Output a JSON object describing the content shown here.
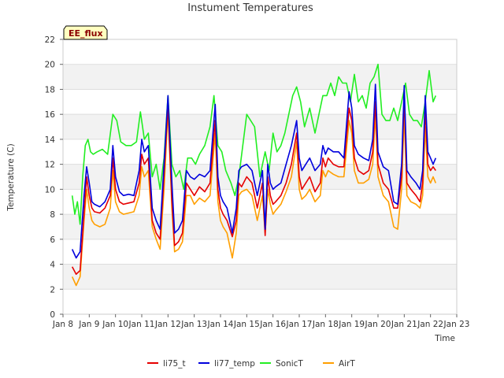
{
  "chart_data": {
    "type": "line",
    "title": "Instument Temperatures",
    "xlabel": "Time",
    "ylabel": "Temperature (C)",
    "badge": "EE_flux",
    "ylim": [
      0,
      22
    ],
    "xlim": [
      8,
      23
    ],
    "yticks": [
      "0",
      "2",
      "4",
      "6",
      "8",
      "10",
      "12",
      "14",
      "16",
      "18",
      "20",
      "22"
    ],
    "ytick_values": [
      0,
      2,
      4,
      6,
      8,
      10,
      12,
      14,
      16,
      18,
      20,
      22
    ],
    "xticks": [
      "Jan 8",
      "Jan 9",
      "Jan 10",
      "Jan 11",
      "Jan 12",
      "Jan 13",
      "Jan 14",
      "Jan 15",
      "Jan 16",
      "Jan 17",
      "Jan 18",
      "Jan 19",
      "Jan 20",
      "Jan 21",
      "Jan 22",
      "Jan 23"
    ],
    "xtick_values": [
      8,
      9,
      10,
      11,
      12,
      13,
      14,
      15,
      16,
      17,
      18,
      19,
      20,
      21,
      22,
      23
    ],
    "background_bands": "alternating grey/white every 2 units",
    "legend_position": "bottom-center",
    "series": [
      {
        "name": "li75_t",
        "color": "#e60000",
        "x": [
          8.35,
          8.5,
          8.65,
          8.8,
          8.9,
          9.0,
          9.1,
          9.2,
          9.4,
          9.6,
          9.8,
          9.9,
          10.0,
          10.15,
          10.3,
          10.5,
          10.7,
          10.9,
          11.0,
          11.1,
          11.25,
          11.4,
          11.55,
          11.7,
          11.85,
          12.0,
          12.15,
          12.25,
          12.4,
          12.55,
          12.7,
          12.85,
          13.0,
          13.2,
          13.4,
          13.6,
          13.8,
          13.9,
          14.0,
          14.1,
          14.25,
          14.45,
          14.6,
          14.7,
          14.8,
          15.0,
          15.2,
          15.4,
          15.6,
          15.7,
          15.8,
          15.9,
          16.0,
          16.1,
          16.3,
          16.5,
          16.7,
          16.9,
          17.0,
          17.1,
          17.25,
          17.4,
          17.6,
          17.8,
          17.9,
          18.0,
          18.1,
          18.3,
          18.5,
          18.7,
          18.9,
          19.0,
          19.1,
          19.25,
          19.45,
          19.65,
          19.8,
          19.9,
          20.0,
          20.2,
          20.4,
          20.6,
          20.75,
          20.9,
          21.0,
          21.1,
          21.25,
          21.45,
          21.6,
          21.7,
          21.8,
          21.9,
          22.0,
          22.1,
          22.2
        ],
        "y": [
          3.8,
          3.2,
          3.5,
          8.0,
          11.0,
          9.5,
          8.5,
          8.2,
          8.1,
          8.5,
          9.5,
          12.5,
          10.0,
          9.0,
          8.8,
          8.9,
          9.0,
          10.5,
          12.8,
          12.0,
          12.5,
          7.5,
          6.5,
          6.0,
          11.0,
          16.8,
          9.0,
          5.5,
          5.8,
          6.5,
          10.5,
          10.0,
          9.5,
          10.2,
          9.8,
          10.5,
          15.5,
          10.0,
          8.5,
          8.0,
          7.5,
          6.2,
          7.5,
          10.5,
          10.2,
          11.0,
          10.5,
          8.5,
          10.5,
          6.3,
          11.0,
          9.5,
          8.8,
          9.0,
          9.5,
          10.5,
          12.0,
          14.5,
          11.0,
          10.0,
          10.5,
          11.0,
          9.8,
          10.5,
          12.5,
          11.8,
          12.5,
          12.0,
          11.8,
          11.8,
          16.5,
          15.5,
          12.5,
          11.5,
          11.2,
          11.5,
          13.0,
          17.0,
          12.0,
          10.5,
          10.0,
          8.5,
          8.5,
          11.0,
          17.5,
          10.5,
          10.0,
          9.5,
          9.0,
          10.5,
          16.5,
          12.0,
          11.5,
          11.8,
          11.5
        ]
      },
      {
        "name": "li77_temp",
        "color": "#0000dd",
        "x": [
          8.35,
          8.5,
          8.65,
          8.8,
          8.9,
          9.0,
          9.1,
          9.2,
          9.4,
          9.6,
          9.8,
          9.9,
          10.0,
          10.15,
          10.3,
          10.5,
          10.7,
          10.9,
          11.0,
          11.1,
          11.25,
          11.4,
          11.55,
          11.7,
          11.85,
          12.0,
          12.15,
          12.25,
          12.4,
          12.55,
          12.7,
          12.85,
          13.0,
          13.2,
          13.4,
          13.6,
          13.8,
          13.9,
          14.0,
          14.1,
          14.25,
          14.45,
          14.6,
          14.7,
          14.8,
          15.0,
          15.2,
          15.4,
          15.6,
          15.7,
          15.8,
          15.9,
          16.0,
          16.1,
          16.3,
          16.5,
          16.7,
          16.9,
          17.0,
          17.1,
          17.25,
          17.4,
          17.6,
          17.8,
          17.9,
          18.0,
          18.1,
          18.3,
          18.5,
          18.7,
          18.9,
          19.0,
          19.1,
          19.25,
          19.45,
          19.65,
          19.8,
          19.9,
          20.0,
          20.2,
          20.4,
          20.6,
          20.75,
          20.9,
          21.0,
          21.1,
          21.25,
          21.45,
          21.6,
          21.7,
          21.8,
          21.9,
          22.0,
          22.1,
          22.2
        ],
        "y": [
          5.2,
          4.5,
          5.0,
          9.5,
          11.8,
          10.5,
          9.0,
          8.8,
          8.6,
          9.0,
          10.0,
          13.5,
          11.0,
          9.8,
          9.5,
          9.6,
          9.5,
          11.5,
          14.0,
          13.0,
          13.5,
          8.5,
          7.5,
          6.8,
          12.0,
          17.5,
          10.5,
          6.5,
          6.8,
          7.5,
          11.5,
          11.0,
          10.8,
          11.2,
          11.0,
          11.5,
          16.8,
          11.0,
          9.5,
          9.0,
          8.5,
          6.5,
          8.5,
          11.5,
          11.8,
          12.0,
          11.5,
          9.5,
          11.5,
          6.8,
          12.0,
          10.5,
          10.0,
          10.2,
          10.5,
          12.0,
          13.5,
          15.5,
          12.5,
          11.5,
          12.0,
          12.5,
          11.5,
          12.0,
          13.5,
          12.8,
          13.3,
          13.0,
          13.0,
          12.5,
          17.8,
          16.5,
          13.5,
          12.8,
          12.5,
          12.3,
          14.0,
          18.4,
          13.0,
          11.8,
          11.5,
          9.0,
          8.8,
          12.0,
          18.3,
          11.5,
          11.0,
          10.5,
          10.0,
          11.5,
          17.5,
          13.0,
          12.5,
          12.0,
          12.5
        ]
      },
      {
        "name": "SonicT",
        "color": "#22ee22",
        "x": [
          8.35,
          8.45,
          8.55,
          8.65,
          8.75,
          8.85,
          8.95,
          9.05,
          9.15,
          9.3,
          9.5,
          9.7,
          9.9,
          10.05,
          10.2,
          10.4,
          10.6,
          10.8,
          10.95,
          11.1,
          11.25,
          11.4,
          11.55,
          11.7,
          11.85,
          12.0,
          12.15,
          12.3,
          12.45,
          12.6,
          12.75,
          12.9,
          13.05,
          13.2,
          13.4,
          13.6,
          13.75,
          13.9,
          14.05,
          14.2,
          14.4,
          14.55,
          14.7,
          14.85,
          15.0,
          15.15,
          15.3,
          15.5,
          15.7,
          15.85,
          16.0,
          16.15,
          16.3,
          16.45,
          16.6,
          16.75,
          16.9,
          17.05,
          17.2,
          17.4,
          17.6,
          17.75,
          17.9,
          18.05,
          18.2,
          18.35,
          18.5,
          18.65,
          18.8,
          18.95,
          19.1,
          19.25,
          19.4,
          19.55,
          19.7,
          19.85,
          20.0,
          20.15,
          20.3,
          20.45,
          20.6,
          20.75,
          20.9,
          21.05,
          21.2,
          21.35,
          21.5,
          21.65,
          21.8,
          21.95,
          22.1,
          22.2
        ],
        "y": [
          9.5,
          8.0,
          9.0,
          7.2,
          11.0,
          13.5,
          14.0,
          13.0,
          12.8,
          13.0,
          13.2,
          12.8,
          16.0,
          15.5,
          13.8,
          13.5,
          13.5,
          13.8,
          16.2,
          14.0,
          14.5,
          11.0,
          12.0,
          10.0,
          12.5,
          17.5,
          12.0,
          11.0,
          11.5,
          10.0,
          12.5,
          12.5,
          12.0,
          12.8,
          13.5,
          15.0,
          17.5,
          13.5,
          13.0,
          11.5,
          10.5,
          9.5,
          11.0,
          13.5,
          16.0,
          15.5,
          15.0,
          11.0,
          13.0,
          11.5,
          14.5,
          13.0,
          13.5,
          14.5,
          16.0,
          17.5,
          18.2,
          17.0,
          15.0,
          16.5,
          14.5,
          16.0,
          17.5,
          17.5,
          18.5,
          17.5,
          19.0,
          18.5,
          18.5,
          17.0,
          19.2,
          17.0,
          17.5,
          16.5,
          18.5,
          19.0,
          20.0,
          16.0,
          15.5,
          15.5,
          16.5,
          15.5,
          17.0,
          18.5,
          16.0,
          15.5,
          15.5,
          15.0,
          17.0,
          19.5,
          17.0,
          17.5
        ]
      },
      {
        "name": "AirT",
        "color": "#ff9f00",
        "x": [
          8.35,
          8.5,
          8.65,
          8.8,
          8.9,
          9.0,
          9.1,
          9.2,
          9.4,
          9.6,
          9.8,
          9.9,
          10.0,
          10.15,
          10.3,
          10.5,
          10.7,
          10.9,
          11.0,
          11.1,
          11.25,
          11.4,
          11.55,
          11.7,
          11.85,
          12.0,
          12.15,
          12.25,
          12.4,
          12.55,
          12.7,
          12.85,
          13.0,
          13.2,
          13.4,
          13.6,
          13.8,
          13.9,
          14.0,
          14.1,
          14.25,
          14.45,
          14.6,
          14.7,
          14.8,
          15.0,
          15.2,
          15.4,
          15.6,
          15.7,
          15.8,
          15.9,
          16.0,
          16.1,
          16.3,
          16.5,
          16.7,
          16.9,
          17.0,
          17.1,
          17.25,
          17.4,
          17.6,
          17.8,
          17.9,
          18.0,
          18.1,
          18.3,
          18.5,
          18.7,
          18.9,
          19.0,
          19.1,
          19.25,
          19.45,
          19.65,
          19.8,
          19.9,
          20.0,
          20.2,
          20.4,
          20.6,
          20.75,
          20.9,
          21.0,
          21.1,
          21.25,
          21.45,
          21.6,
          21.7,
          21.8,
          21.9,
          22.0,
          22.1,
          22.2
        ],
        "y": [
          3.0,
          2.3,
          3.0,
          7.5,
          10.0,
          8.5,
          7.5,
          7.2,
          7.0,
          7.2,
          8.5,
          11.5,
          9.0,
          8.2,
          8.0,
          8.1,
          8.2,
          9.5,
          11.8,
          11.0,
          11.5,
          7.0,
          6.0,
          5.2,
          10.0,
          16.3,
          8.5,
          5.0,
          5.2,
          5.8,
          9.5,
          9.5,
          8.8,
          9.3,
          9.0,
          9.5,
          14.5,
          9.0,
          7.5,
          7.0,
          6.5,
          4.5,
          6.5,
          9.5,
          9.8,
          10.0,
          9.5,
          7.5,
          9.5,
          6.5,
          10.0,
          8.8,
          8.0,
          8.3,
          8.8,
          9.8,
          11.0,
          13.8,
          10.0,
          9.2,
          9.5,
          10.0,
          9.0,
          9.5,
          11.5,
          11.0,
          11.5,
          11.2,
          11.0,
          11.0,
          15.5,
          14.5,
          11.5,
          10.5,
          10.5,
          10.8,
          12.0,
          16.0,
          11.0,
          9.5,
          9.0,
          7.0,
          6.8,
          10.0,
          16.0,
          9.5,
          9.0,
          8.8,
          8.5,
          9.5,
          15.0,
          11.0,
          10.5,
          11.0,
          10.5
        ]
      }
    ]
  }
}
